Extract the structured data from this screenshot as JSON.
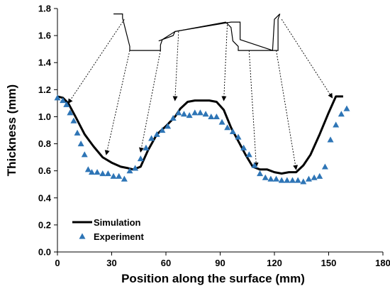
{
  "chart_data": {
    "type": "line",
    "title": "",
    "xlabel": "Position along the surface (mm)",
    "ylabel": "Thickness (mm)",
    "xlim": [
      0,
      180
    ],
    "ylim": [
      0,
      1.8
    ],
    "xticks": [
      0,
      30,
      60,
      90,
      120,
      150,
      180
    ],
    "xtick_labels": [
      "0",
      "30",
      "60",
      "90",
      "120",
      "150",
      "180"
    ],
    "yticks": [
      0,
      0.2,
      0.4,
      0.6,
      0.8,
      1.0,
      1.2,
      1.4,
      1.6,
      1.8
    ],
    "ytick_labels": [
      "0.0",
      "0.2",
      "0.4",
      "0.6",
      "0.8",
      "1.0",
      "1.2",
      "1.4",
      "1.6",
      "1.8"
    ],
    "grid": false,
    "legend_position": "bottom-left",
    "series": [
      {
        "name": "Simulation",
        "style": "line",
        "color": "#000000",
        "x": [
          0,
          3,
          6,
          10,
          15,
          20,
          25,
          30,
          35,
          39,
          42,
          46,
          50,
          55,
          60,
          65,
          68,
          72,
          76,
          80,
          84,
          88,
          92,
          96,
          100,
          104,
          108,
          112,
          116,
          120,
          124,
          128,
          132,
          136,
          140,
          145,
          150,
          154,
          158
        ],
        "y": [
          1.15,
          1.14,
          1.1,
          1.0,
          0.87,
          0.78,
          0.7,
          0.66,
          0.63,
          0.62,
          0.61,
          0.63,
          0.75,
          0.87,
          0.93,
          1.0,
          1.06,
          1.11,
          1.12,
          1.12,
          1.12,
          1.11,
          1.05,
          0.92,
          0.82,
          0.72,
          0.63,
          0.61,
          0.61,
          0.59,
          0.58,
          0.59,
          0.59,
          0.64,
          0.72,
          0.87,
          1.03,
          1.15,
          1.15
        ]
      },
      {
        "name": "Experiment",
        "style": "triangle",
        "color": "#2e75b6",
        "x": [
          0,
          3,
          5,
          7,
          9,
          11,
          13,
          15,
          17,
          19,
          22,
          25,
          28,
          31,
          34,
          37,
          40,
          43,
          46,
          49,
          52,
          55,
          58,
          61,
          64,
          67,
          70,
          73,
          76,
          79,
          82,
          85,
          88,
          91,
          94,
          97,
          100,
          103,
          106,
          109,
          112,
          115,
          118,
          121,
          124,
          127,
          130,
          133,
          136,
          139,
          142,
          145,
          148,
          151,
          154,
          157,
          160
        ],
        "y": [
          1.14,
          1.12,
          1.09,
          1.03,
          0.97,
          0.88,
          0.8,
          0.72,
          0.61,
          0.59,
          0.59,
          0.58,
          0.58,
          0.56,
          0.56,
          0.54,
          0.6,
          0.62,
          0.69,
          0.77,
          0.84,
          0.87,
          0.9,
          0.93,
          0.99,
          1.03,
          1.02,
          1.01,
          1.03,
          1.03,
          1.02,
          1.0,
          1.0,
          0.96,
          0.92,
          0.89,
          0.85,
          0.77,
          0.72,
          0.64,
          0.58,
          0.55,
          0.54,
          0.54,
          0.53,
          0.53,
          0.53,
          0.53,
          0.52,
          0.54,
          0.55,
          0.56,
          0.63,
          0.83,
          0.94,
          1.02,
          1.06
        ]
      }
    ],
    "profile_line": {
      "x": [
        31,
        36,
        36,
        40,
        40,
        57,
        57,
        58,
        65,
        96,
        101,
        101,
        119,
        119,
        120,
        123
      ],
      "y": [
        1.76,
        1.76,
        1.73,
        1.52,
        1.49,
        1.49,
        1.53,
        1.57,
        1.63,
        1.7,
        1.7,
        1.57,
        1.49,
        1.49,
        1.72,
        1.76
      ]
    },
    "profile_line_extra": {
      "x": [
        56,
        64,
        65,
        93,
        96,
        97,
        100,
        100,
        103,
        103,
        104,
        106,
        121,
        122,
        122,
        123
      ],
      "y": [
        1.56,
        1.6,
        1.63,
        1.7,
        1.66,
        1.56,
        1.52,
        1.49,
        1.49,
        1.49,
        1.49,
        1.49,
        1.49,
        1.49,
        1.72,
        1.76
      ]
    },
    "annotation_arrows": [
      {
        "from": [
          37,
          1.72
        ],
        "to": [
          6,
          1.1
        ]
      },
      {
        "from": [
          40,
          1.49
        ],
        "to": [
          27,
          0.72
        ]
      },
      {
        "from": [
          57,
          1.49
        ],
        "to": [
          46,
          0.74
        ]
      },
      {
        "from": [
          67,
          1.63
        ],
        "to": [
          65,
          1.12
        ]
      },
      {
        "from": [
          94,
          1.7
        ],
        "to": [
          92,
          1.12
        ]
      },
      {
        "from": [
          106,
          1.49
        ],
        "to": [
          110,
          0.63
        ]
      },
      {
        "from": [
          121,
          1.49
        ],
        "to": [
          132,
          0.61
        ]
      },
      {
        "from": [
          124,
          1.72
        ],
        "to": [
          152,
          1.14
        ]
      }
    ]
  }
}
